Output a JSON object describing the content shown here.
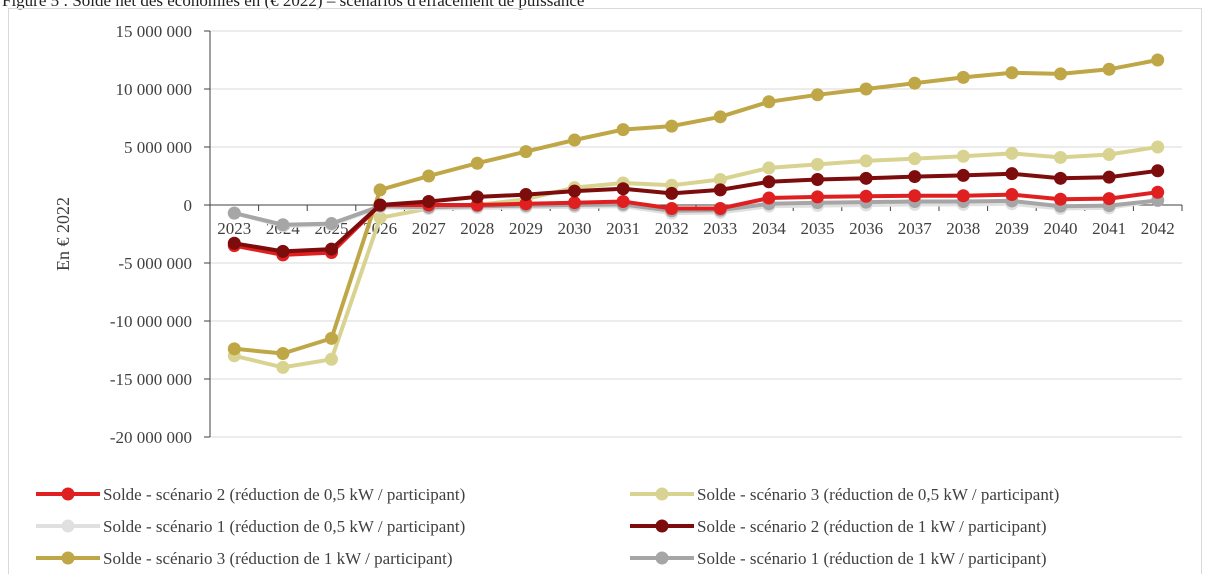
{
  "caption": "Figure 5 : Solde net des économies en (€ 2022) – scénarios d'effacement de puissance",
  "chart_data": {
    "type": "line",
    "title": "",
    "xlabel": "",
    "ylabel": "En € 2022",
    "x": [
      "2023",
      "2024",
      "2025",
      "2026",
      "2027",
      "2028",
      "2029",
      "2030",
      "2031",
      "2032",
      "2033",
      "2034",
      "2035",
      "2036",
      "2037",
      "2038",
      "2039",
      "2040",
      "2041",
      "2042"
    ],
    "ylim": [
      -20000000,
      15000000
    ],
    "yticks": [
      15000000,
      10000000,
      5000000,
      0,
      -5000000,
      -10000000,
      -15000000,
      -20000000
    ],
    "ytick_labels": [
      "15 000 000",
      "10 000 000",
      "5 000 000",
      "0",
      "-5 000 000",
      "-10 000 000",
      "-15 000 000",
      "-20 000 000"
    ],
    "grid": "horizontal",
    "legend_position": "bottom",
    "series": [
      {
        "name": "Solde - scénario 3 (réduction de 0,5 kW / participant)",
        "color": "#d9d392",
        "values": [
          -13000000,
          -14000000,
          -13300000,
          -1100000,
          -300000,
          0,
          500000,
          1500000,
          1900000,
          1700000,
          2200000,
          3200000,
          3500000,
          3800000,
          4000000,
          4200000,
          4450000,
          4100000,
          4350000,
          5000000
        ]
      },
      {
        "name": "Solde - scénario 3 (réduction de 1 kW / participant)",
        "color": "#bfa646",
        "values": [
          -12400000,
          -12800000,
          -11500000,
          1300000,
          2500000,
          3600000,
          4600000,
          5600000,
          6500000,
          6800000,
          7600000,
          8900000,
          9500000,
          10000000,
          10500000,
          11000000,
          11400000,
          11300000,
          11700000,
          12500000
        ]
      },
      {
        "name": "Solde - scénario 1 (réduction de 0,5 kW / participant)",
        "color": "#e0e0e0",
        "values": [
          -700000,
          -1800000,
          -1700000,
          -200000,
          -300000,
          -250000,
          -200000,
          -150000,
          -100000,
          -700000,
          -650000,
          -100000,
          -50000,
          0,
          50000,
          50000,
          100000,
          -300000,
          -250000,
          400000
        ]
      },
      {
        "name": "Solde - scénario 1 (réduction de 1 kW / participant)",
        "color": "#a6a6a6",
        "values": [
          -700000,
          -1700000,
          -1600000,
          -100000,
          -200000,
          -100000,
          -50000,
          0,
          50000,
          -500000,
          -450000,
          100000,
          200000,
          250000,
          300000,
          300000,
          350000,
          -100000,
          -50000,
          400000
        ]
      },
      {
        "name": "Solde - scénario 2 (réduction de 0,5 kW / participant)",
        "color": "#e02020",
        "values": [
          -3500000,
          -4300000,
          -4100000,
          0,
          0,
          0,
          100000,
          200000,
          300000,
          -300000,
          -300000,
          600000,
          700000,
          750000,
          800000,
          800000,
          900000,
          500000,
          550000,
          1100000
        ]
      },
      {
        "name": "Solde - scénario 2 (réduction de 1 kW / participant)",
        "color": "#7d0c0c",
        "values": [
          -3300000,
          -4000000,
          -3800000,
          0,
          300000,
          700000,
          900000,
          1200000,
          1400000,
          1000000,
          1300000,
          2000000,
          2200000,
          2300000,
          2450000,
          2550000,
          2700000,
          2300000,
          2400000,
          2950000
        ]
      }
    ],
    "legend_order": [
      "Solde - scénario 2 (réduction de 0,5 kW / participant)",
      "Solde - scénario 3 (réduction de 0,5 kW / participant)",
      "Solde - scénario 1 (réduction de 0,5 kW / participant)",
      "Solde - scénario 2 (réduction de 1 kW / participant)",
      "Solde - scénario 3 (réduction de 1 kW / participant)",
      "Solde - scénario 1 (réduction de 1 kW / participant)"
    ]
  }
}
